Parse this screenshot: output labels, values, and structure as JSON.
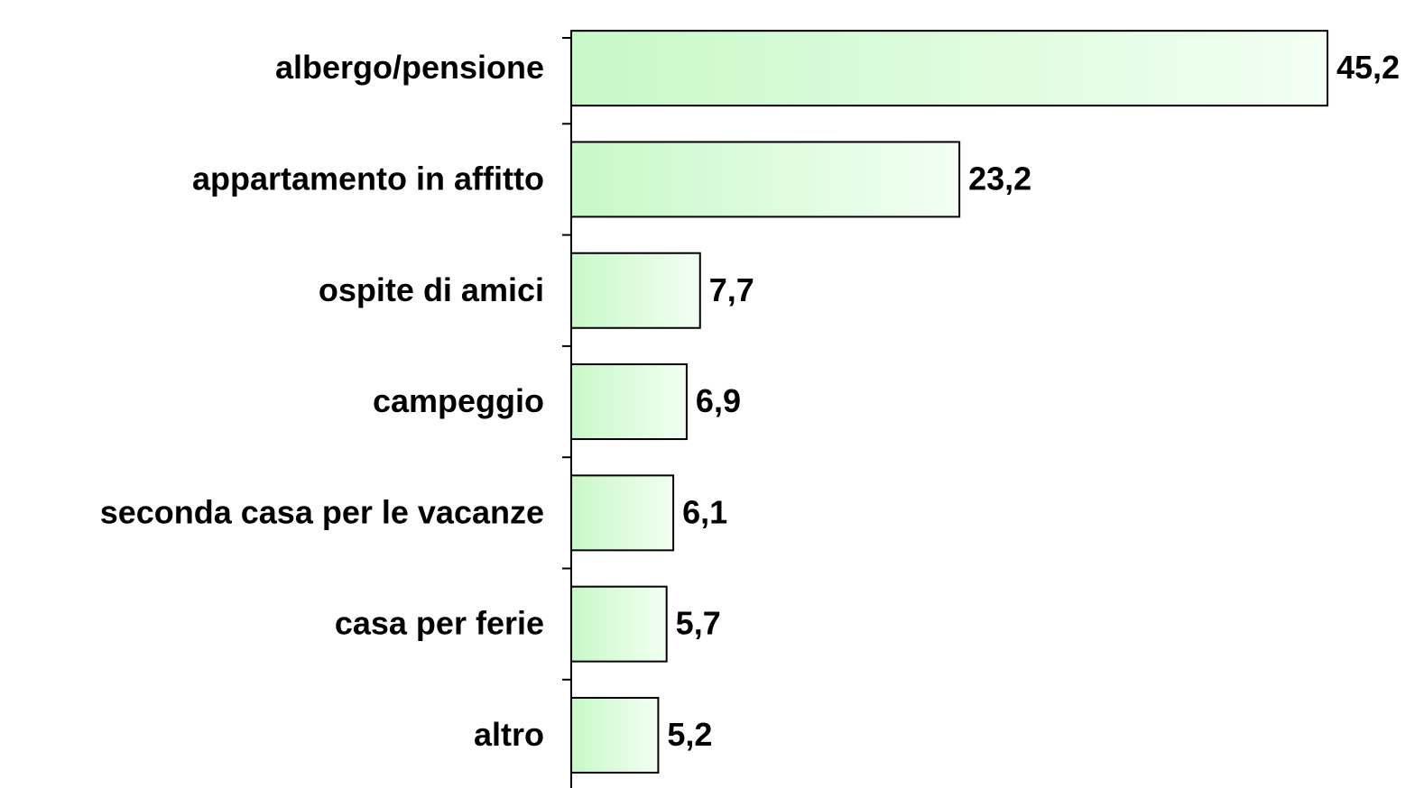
{
  "chart_data": {
    "type": "bar",
    "orientation": "horizontal",
    "categories": [
      "albergo/pensione",
      "appartamento in affitto",
      "ospite di amici",
      "campeggio",
      "seconda casa per le vacanze",
      "casa per ferie",
      "altro"
    ],
    "values": [
      45.2,
      23.2,
      7.7,
      6.9,
      6.1,
      5.7,
      5.2
    ],
    "value_labels": [
      "45,2",
      "23,2",
      "7,7",
      "6,9",
      "6,1",
      "5,7",
      "5,2"
    ],
    "color": "#c8f8c8"
  }
}
